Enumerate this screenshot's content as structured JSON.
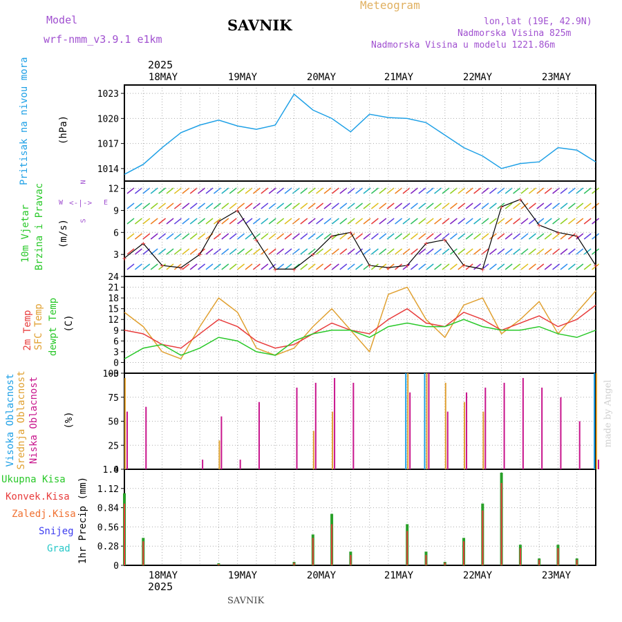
{
  "header": {
    "model_label": "Model",
    "model_name": "wrf-nmm_v3.9.1  e1km",
    "station": "SAVNIK",
    "meteogram": "Meteogram",
    "lonlat": "lon,lat (19E, 42.9N)",
    "elevation": "Nadmorska Visina 825m",
    "model_elevation": "Nadmorska Visina u modelu 1221.86m",
    "year_top": "2025",
    "year_bottom": "2025",
    "footer_station": "SAVNIK",
    "watermark": "made by Angel"
  },
  "colors": {
    "pressure": "#1ea0e6",
    "t2m": "#e83c3c",
    "sfc": "#e0a030",
    "dew": "#28c828",
    "high_cloud": "#1ea0e6",
    "mid_cloud": "#e0a030",
    "low_cloud": "#c8148c",
    "precip_total": "#28a028",
    "precip_conv": "#e83c3c"
  },
  "chart_data": [
    {
      "type": "line",
      "panel": "pressure",
      "ylabel_left": "Pritisak na nivou mora",
      "ylabel": "(hPa)",
      "ylim": [
        1012.5,
        1024
      ],
      "yticks": [
        "1014",
        "1017",
        "1020",
        "1023"
      ],
      "xticks": [
        "18MAY",
        "19MAY",
        "20MAY",
        "21MAY",
        "22MAY",
        "23MAY"
      ],
      "x_hours": [
        0,
        6,
        12,
        18,
        24,
        30,
        36,
        42,
        48,
        54,
        60,
        66,
        72,
        78,
        84,
        90,
        96,
        102,
        108,
        114,
        120,
        126,
        132,
        138,
        144,
        150
      ],
      "series": [
        {
          "values": [
            1013.3,
            1014.5,
            1016.5,
            1018.3,
            1019.2,
            1019.8,
            1019.1,
            1018.7,
            1019.2,
            1022.9,
            1021.0,
            1020.0,
            1018.4,
            1020.5,
            1020.1,
            1020.0,
            1019.5,
            1018.0,
            1016.5,
            1015.5,
            1014.0,
            1014.6,
            1014.8,
            1016.5,
            1016.2,
            1014.8
          ]
        }
      ],
      "grid": true
    },
    {
      "type": "line",
      "panel": "wind",
      "ylabel_left": [
        "10m Vjetar",
        "Brzina i Pravac"
      ],
      "ylabel": "(m/s)",
      "compass": {
        "north": "N",
        "south": "S",
        "west": "W",
        "east": "E"
      },
      "ylim": [
        0,
        13
      ],
      "yticks": [
        "3",
        "6",
        "9",
        "12"
      ],
      "series": [
        {
          "name": "wind speed",
          "values": [
            2.5,
            4.5,
            1.5,
            1.2,
            3.0,
            7.5,
            9.0,
            5.0,
            1.0,
            1.0,
            3.0,
            5.5,
            6.0,
            1.5,
            1.2,
            1.5,
            4.5,
            5.0,
            1.5,
            1.0,
            9.5,
            10.5,
            7.0,
            6.0,
            5.5,
            1.5
          ]
        }
      ],
      "grid": true
    },
    {
      "type": "line",
      "panel": "temperature",
      "ylabel_left": [
        "2m Temp",
        "SFC Temp",
        "dewpt Temp"
      ],
      "ylabel": "(C)",
      "ylim": [
        -3,
        24
      ],
      "yticks": [
        "−3",
        "0",
        "3",
        "6",
        "9",
        "12",
        "15",
        "18",
        "21",
        "24"
      ],
      "series": [
        {
          "name": "2m Temp",
          "values": [
            9,
            8,
            5,
            4,
            8,
            12,
            10,
            6,
            4,
            5,
            8,
            11,
            9,
            8,
            12,
            15,
            11,
            10,
            14,
            12,
            9,
            11,
            13,
            10,
            12,
            16
          ]
        },
        {
          "name": "SFC Temp",
          "values": [
            14,
            10,
            3,
            1,
            10,
            18,
            14,
            4,
            2,
            4,
            10,
            15,
            9,
            3,
            19,
            21,
            12,
            7,
            16,
            18,
            8,
            12,
            17,
            8,
            14,
            20
          ]
        },
        {
          "name": "dewpt Temp",
          "values": [
            1,
            4,
            5,
            2,
            4,
            7,
            6,
            3,
            2,
            6,
            8,
            9,
            9,
            7,
            10,
            11,
            10,
            10,
            12,
            10,
            9,
            9,
            10,
            8,
            7,
            9
          ]
        }
      ],
      "grid": true
    },
    {
      "type": "bar",
      "panel": "clouds",
      "ylabel_left": [
        "Visoka Oblacnost",
        "Srednja Oblacnost",
        "Niska Oblacnost"
      ],
      "ylabel": "(%)",
      "ylim": [
        0,
        100
      ],
      "yticks": [
        "0",
        "25",
        "50",
        "75",
        "100"
      ],
      "series": [
        {
          "name": "Visoka Oblacnost",
          "values": [
            0,
            0,
            0,
            0,
            0,
            0,
            0,
            0,
            0,
            0,
            0,
            0,
            0,
            0,
            0,
            100,
            100,
            0,
            0,
            0,
            0,
            0,
            0,
            0,
            0,
            100
          ]
        },
        {
          "name": "Srednja Oblacnost",
          "values": [
            95,
            0,
            0,
            0,
            0,
            30,
            0,
            0,
            0,
            0,
            40,
            60,
            0,
            0,
            0,
            100,
            100,
            90,
            70,
            60,
            0,
            0,
            0,
            0,
            0,
            100
          ]
        },
        {
          "name": "Niska Oblacnost",
          "values": [
            60,
            65,
            0,
            0,
            10,
            55,
            10,
            70,
            0,
            85,
            90,
            95,
            90,
            0,
            0,
            80,
            100,
            60,
            80,
            85,
            90,
            95,
            85,
            75,
            50,
            10
          ]
        }
      ],
      "grid": true
    },
    {
      "type": "bar",
      "panel": "precip",
      "ylabel_left": [
        "Ukupna  Kisa",
        "Konvek.Kisa",
        "Zaledj.Kisa",
        "Snijeg",
        "Grad"
      ],
      "ylabel": "1hr Precip (mm)",
      "ylim": [
        0,
        1.4
      ],
      "yticks": [
        "0",
        "0.28",
        "0.56",
        "0.84",
        "1.12",
        "1.4"
      ],
      "series": [
        {
          "name": "Ukupna Kisa",
          "values": [
            1.05,
            0.4,
            0.0,
            0.0,
            0.0,
            0.03,
            0.0,
            0.0,
            0.0,
            0.05,
            0.45,
            0.75,
            0.2,
            0.0,
            0.0,
            0.6,
            0.2,
            0.05,
            0.4,
            0.9,
            1.35,
            0.3,
            0.1,
            0.3,
            0.1,
            0.0
          ]
        },
        {
          "name": "Konvek.Kisa",
          "values": [
            0.9,
            0.35,
            0.0,
            0.0,
            0.0,
            0.02,
            0.0,
            0.0,
            0.0,
            0.04,
            0.4,
            0.6,
            0.15,
            0.0,
            0.0,
            0.5,
            0.15,
            0.04,
            0.35,
            0.8,
            1.2,
            0.25,
            0.08,
            0.25,
            0.08,
            0.0
          ]
        }
      ],
      "grid": true
    }
  ]
}
